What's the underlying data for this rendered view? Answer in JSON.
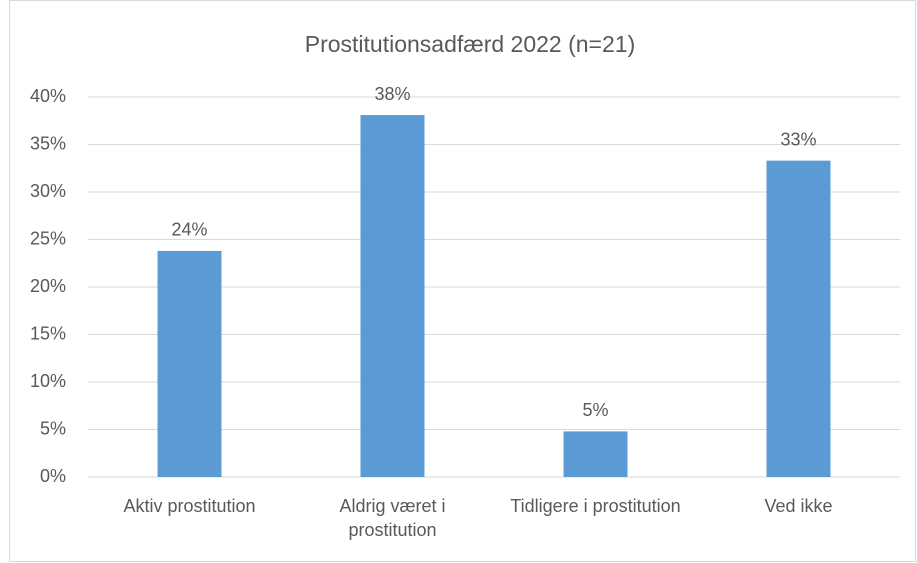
{
  "chart_data": {
    "type": "bar",
    "title": "Prostitutionsadfærd 2022 (n=21)",
    "categories": [
      "Aktiv prostitution",
      "Aldrig været i prostitution",
      "Tidligere i prostitution",
      "Ved ikke"
    ],
    "values": [
      23.8,
      38.1,
      4.8,
      33.3
    ],
    "value_labels": [
      "24%",
      "38%",
      "5%",
      "33%"
    ],
    "color": "#5b9bd5",
    "ylim": [
      0,
      40
    ],
    "yticks": [
      {
        "value": 0,
        "label": "0%"
      },
      {
        "value": 5,
        "label": "5%"
      },
      {
        "value": 10,
        "label": "10%"
      },
      {
        "value": 15,
        "label": "15%"
      },
      {
        "value": 20,
        "label": "20%"
      },
      {
        "value": 25,
        "label": "25%"
      },
      {
        "value": 30,
        "label": "30%"
      },
      {
        "value": 35,
        "label": "35%"
      },
      {
        "value": 40,
        "label": "40%"
      }
    ],
    "grid": true
  }
}
